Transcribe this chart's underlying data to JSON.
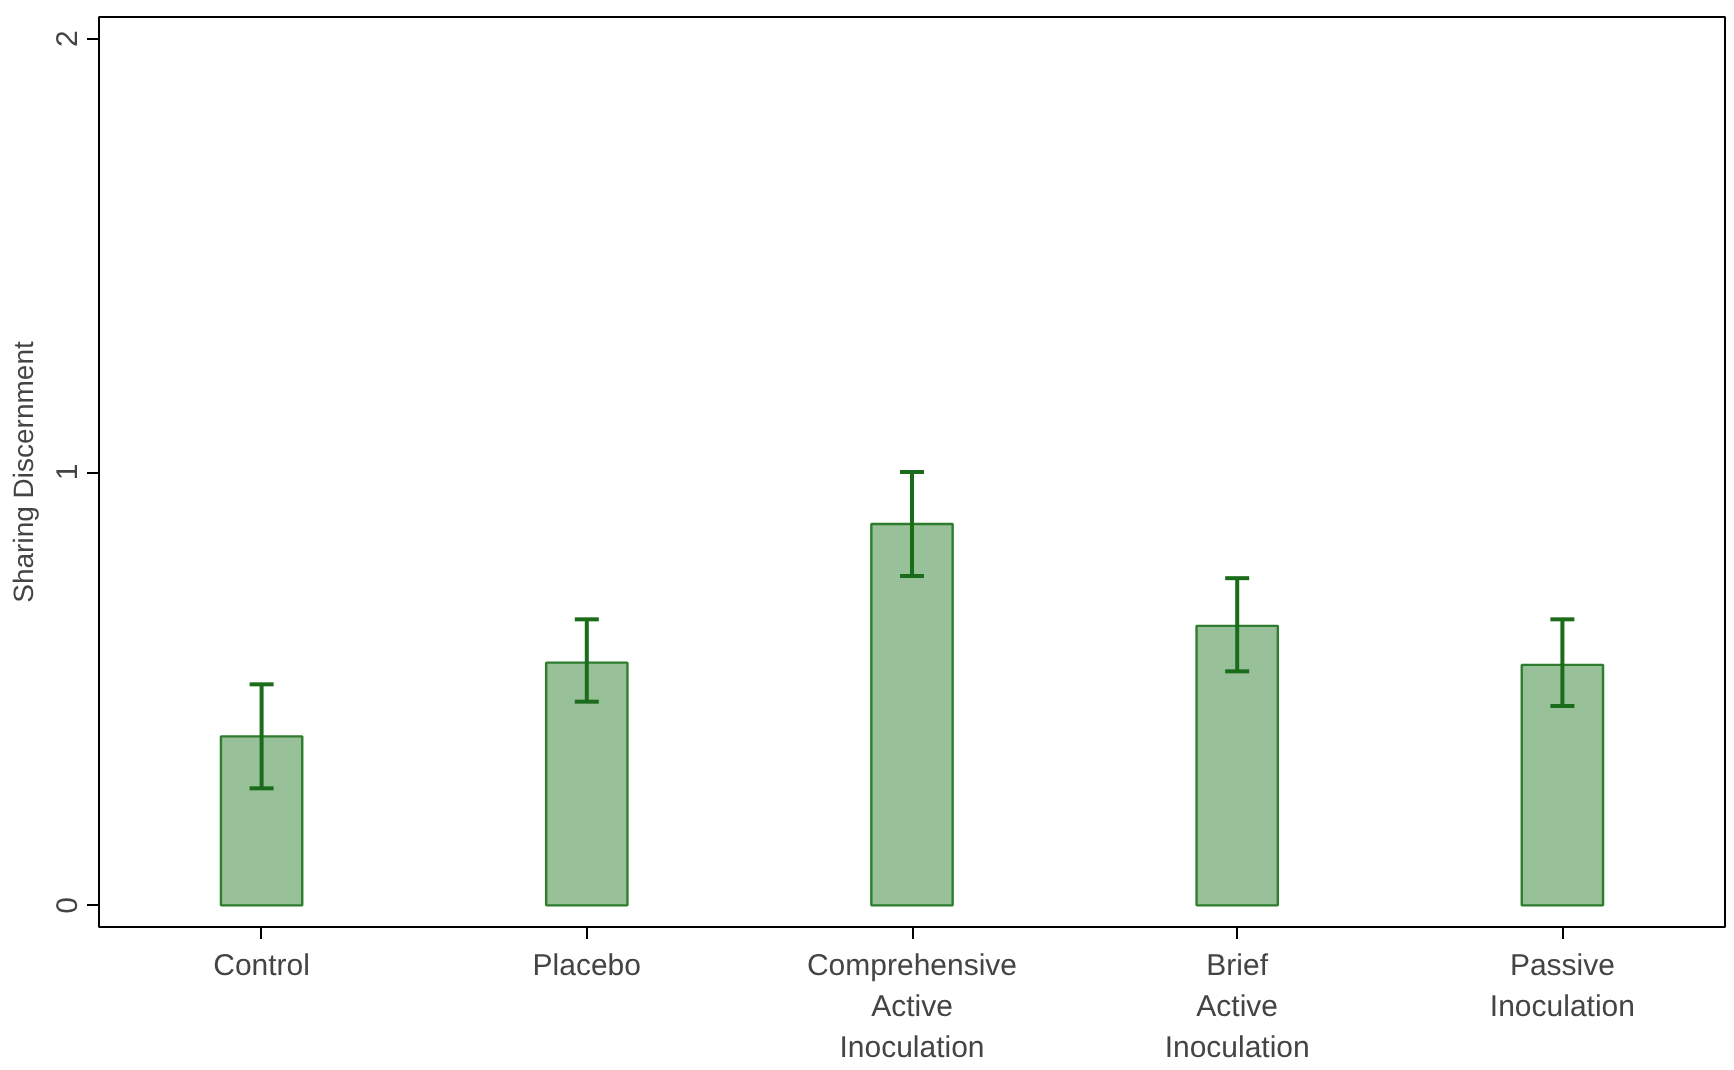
{
  "chart_data": {
    "type": "bar",
    "ylabel": "Sharing Discernment",
    "categories": [
      "Control",
      "Placebo",
      "Comprehensive\nActive\nInoculation",
      "Brief\nActive\nInoculation",
      "Passive\nInoculation"
    ],
    "values": [
      0.39,
      0.56,
      0.88,
      0.645,
      0.555
    ],
    "errors": [
      [
        0.27,
        0.51
      ],
      [
        0.47,
        0.66
      ],
      [
        0.76,
        1.0
      ],
      [
        0.54,
        0.755
      ],
      [
        0.46,
        0.66
      ]
    ],
    "color": "#99c199",
    "ylim": [
      -0.05,
      2.05
    ],
    "yticks": [
      0,
      1,
      2
    ],
    "grid": false
  }
}
